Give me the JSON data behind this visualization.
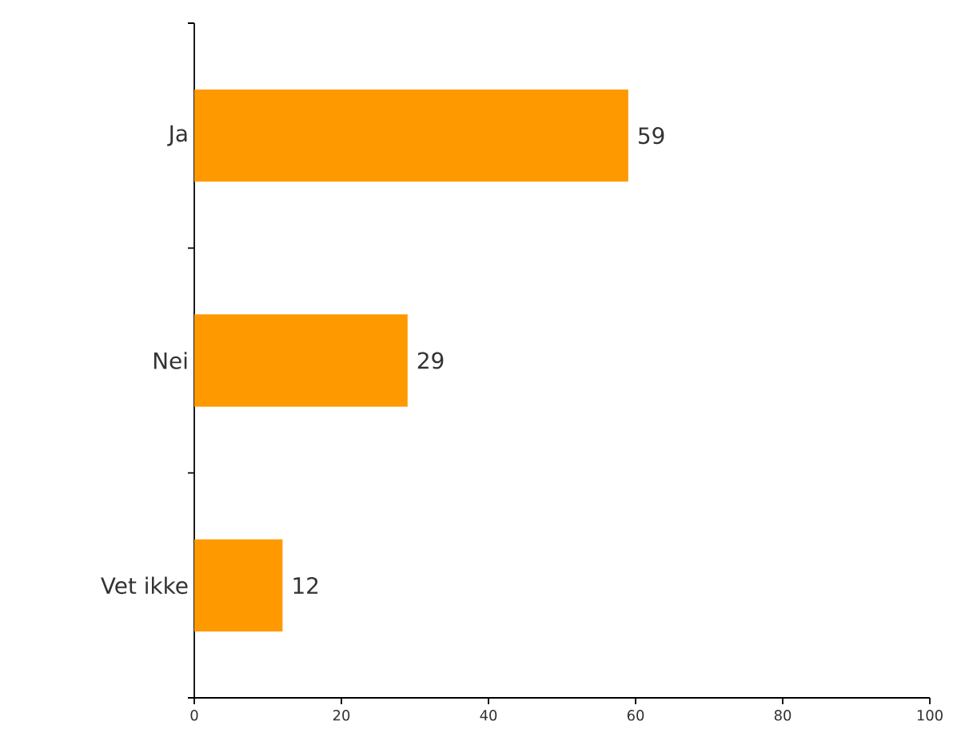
{
  "chart_data": {
    "type": "bar",
    "orientation": "horizontal",
    "categories": [
      "Ja",
      "Nei",
      "Vet ikke"
    ],
    "values": [
      59,
      29,
      12
    ],
    "color": "#ff9900",
    "xlim": [
      0,
      100
    ],
    "xticks": [
      0,
      20,
      40,
      60,
      80,
      100
    ],
    "data_labels": true,
    "grid": false
  }
}
